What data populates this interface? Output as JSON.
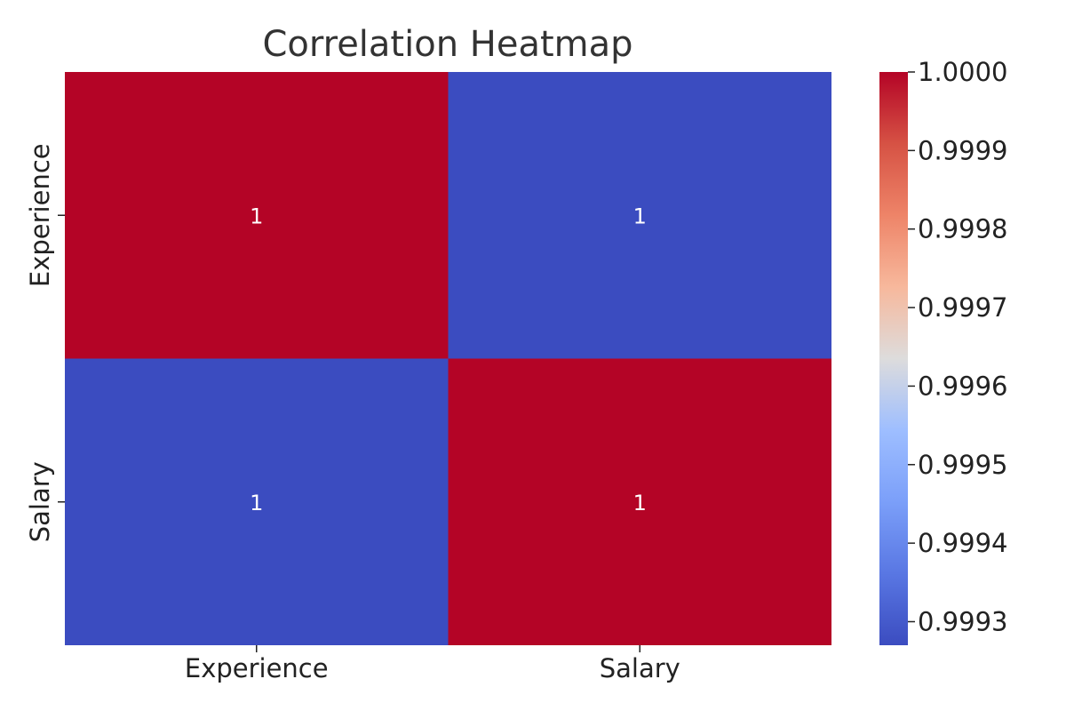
{
  "chart_data": {
    "type": "heatmap",
    "title": "Correlation Heatmap",
    "x_categories": [
      "Experience",
      "Salary"
    ],
    "y_categories": [
      "Experience",
      "Salary"
    ],
    "cells": [
      {
        "row": 0,
        "col": 0,
        "value": 1.0,
        "label": "1"
      },
      {
        "row": 0,
        "col": 1,
        "value": 0.99927,
        "label": "1"
      },
      {
        "row": 1,
        "col": 0,
        "value": 0.99927,
        "label": "1"
      },
      {
        "row": 1,
        "col": 1,
        "value": 1.0,
        "label": "1"
      }
    ],
    "colorbar": {
      "min": 0.99927,
      "max": 1.0,
      "ticks": [
        "1.0000",
        "0.9999",
        "0.9998",
        "0.9997",
        "0.9996",
        "0.9995",
        "0.9994",
        "0.9993"
      ],
      "tick_values": [
        1.0,
        0.9999,
        0.9998,
        0.9997,
        0.9996,
        0.9995,
        0.9994,
        0.9993
      ],
      "colormap": "coolwarm"
    },
    "colors": {
      "low": "#3b4cc0",
      "high": "#b40426"
    },
    "grid": false
  }
}
